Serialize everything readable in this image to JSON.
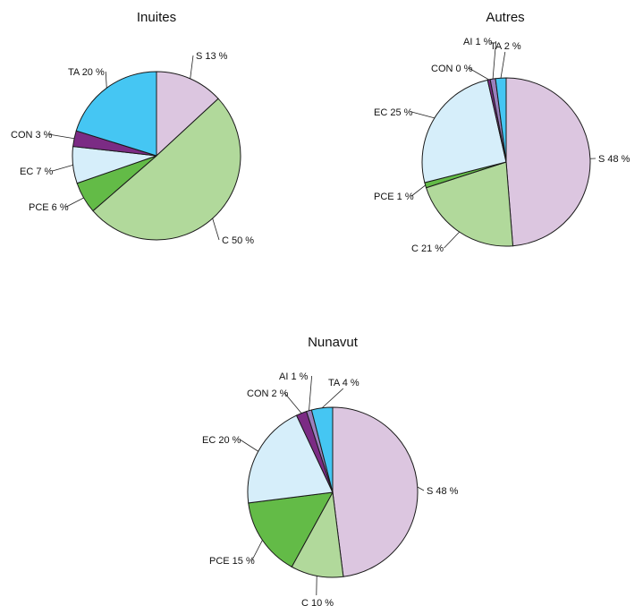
{
  "colors": {
    "S": "#dcc6e0",
    "C": "#b1d99b",
    "PCE": "#63bb47",
    "EC": "#d6eefa",
    "CON": "#7b2b84",
    "AI": "#9a7fbd",
    "TA": "#45c6f3"
  },
  "chart_data": [
    {
      "type": "pie",
      "title": "Inuites",
      "slices": [
        {
          "key": "S",
          "label": "S 13 %",
          "value": 13
        },
        {
          "key": "C",
          "label": "C 50 %",
          "value": 50
        },
        {
          "key": "PCE",
          "label": "PCE 6 %",
          "value": 6
        },
        {
          "key": "EC",
          "label": "EC 7 %",
          "value": 7
        },
        {
          "key": "CON",
          "label": "CON 3 %",
          "value": 3
        },
        {
          "key": "TA",
          "label": "TA 20 %",
          "value": 20
        }
      ]
    },
    {
      "type": "pie",
      "title": "Autres",
      "slices": [
        {
          "key": "S",
          "label": "S 48 %",
          "value": 48
        },
        {
          "key": "C",
          "label": "C 21 %",
          "value": 21
        },
        {
          "key": "PCE",
          "label": "PCE 1 %",
          "value": 1
        },
        {
          "key": "EC",
          "label": "EC 25 %",
          "value": 25
        },
        {
          "key": "CON",
          "label": "CON 0 %",
          "value": 0.5
        },
        {
          "key": "AI",
          "label": "AI 1 %",
          "value": 1
        },
        {
          "key": "TA",
          "label": "TA 2 %",
          "value": 2
        }
      ]
    },
    {
      "type": "pie",
      "title": "Nunavut",
      "slices": [
        {
          "key": "S",
          "label": "S 48 %",
          "value": 48
        },
        {
          "key": "C",
          "label": "C 10 %",
          "value": 10
        },
        {
          "key": "PCE",
          "label": "PCE 15 %",
          "value": 15
        },
        {
          "key": "EC",
          "label": "EC 20 %",
          "value": 20
        },
        {
          "key": "CON",
          "label": "CON 2 %",
          "value": 2
        },
        {
          "key": "AI",
          "label": "AI 1 %",
          "value": 1
        },
        {
          "key": "TA",
          "label": "TA 4 %",
          "value": 4
        }
      ]
    }
  ]
}
